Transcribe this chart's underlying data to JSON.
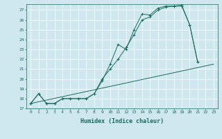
{
  "xlabel": "Humidex (Indice chaleur)",
  "bg_color": "#cfe8f0",
  "line_color": "#1a6b5a",
  "xlim": [
    -0.5,
    23.5
  ],
  "ylim": [
    17,
    27.6
  ],
  "yticks": [
    17,
    18,
    19,
    20,
    21,
    22,
    23,
    24,
    25,
    26,
    27
  ],
  "xticks": [
    0,
    1,
    2,
    3,
    4,
    5,
    6,
    7,
    8,
    9,
    10,
    11,
    12,
    13,
    14,
    15,
    16,
    17,
    18,
    19,
    20,
    21,
    22,
    23
  ],
  "line1_x": [
    0,
    1,
    2,
    3,
    4,
    5,
    6,
    7,
    8,
    9,
    10,
    11,
    12,
    13,
    14,
    15,
    16,
    17,
    18,
    19,
    20,
    21
  ],
  "line1_y": [
    17.5,
    18.5,
    17.5,
    17.5,
    18.0,
    18.0,
    18.0,
    18.0,
    18.5,
    19.8,
    21.5,
    23.5,
    23.0,
    25.0,
    26.6,
    26.5,
    27.2,
    27.4,
    27.4,
    27.5,
    25.5,
    21.7
  ],
  "line2_x": [
    0,
    1,
    2,
    3,
    4,
    5,
    6,
    7,
    8,
    9,
    10,
    11,
    12,
    13,
    14,
    15,
    16,
    17,
    18,
    19,
    20,
    21
  ],
  "line2_y": [
    17.5,
    18.5,
    17.5,
    17.5,
    18.0,
    18.0,
    18.0,
    18.0,
    18.5,
    20.0,
    21.0,
    22.0,
    23.2,
    24.5,
    26.0,
    26.3,
    27.0,
    27.3,
    27.4,
    27.4,
    25.5,
    21.7
  ],
  "line3_x": [
    0,
    23
  ],
  "line3_y": [
    17.5,
    21.5
  ],
  "xlabel_fontsize": 6,
  "tick_fontsize": 4.5
}
